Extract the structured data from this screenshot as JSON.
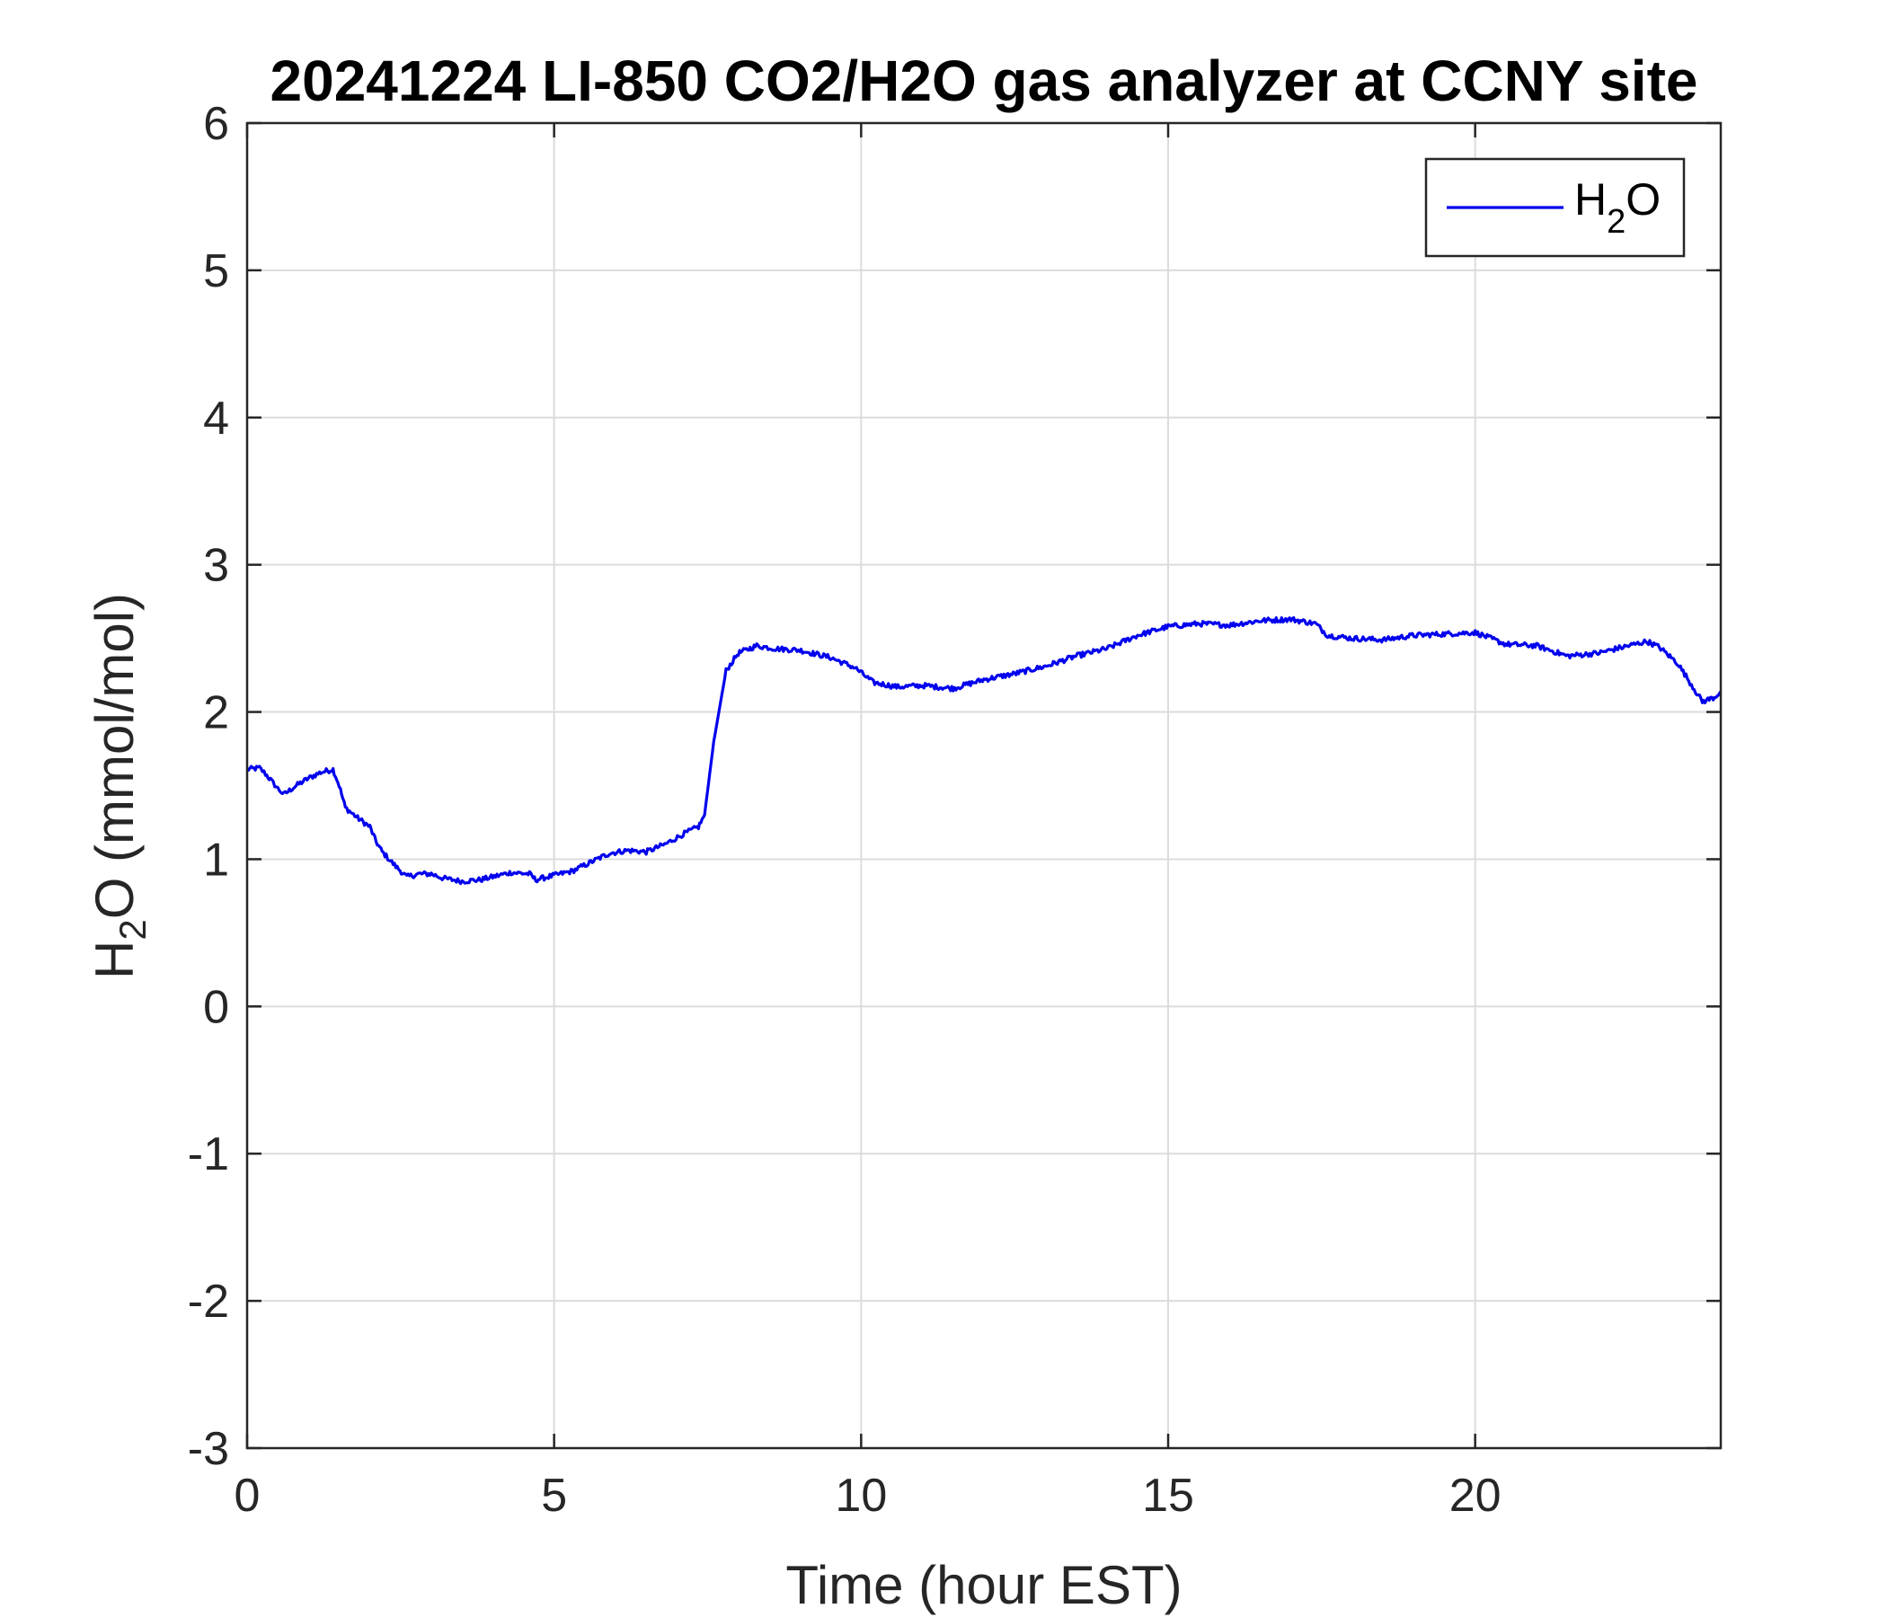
{
  "chart_data": {
    "type": "line",
    "title": "20241224 LI-850 CO2/H2O gas analyzer at CCNY site",
    "xlabel": "Time (hour EST)",
    "ylabel": {
      "base": "H",
      "sub": "2",
      "rest": "O (mmol/mol)"
    },
    "xlim": [
      0,
      24
    ],
    "ylim": [
      -3,
      6
    ],
    "xticks": [
      0,
      5,
      10,
      15,
      20
    ],
    "yticks": [
      -3,
      -2,
      -1,
      0,
      1,
      2,
      3,
      4,
      5,
      6
    ],
    "grid": true,
    "legend_position": "top-right",
    "series": [
      {
        "name": {
          "base": "H",
          "sub": "2",
          "rest": "O"
        },
        "color": "#0000ee",
        "x": [
          0,
          0.2,
          0.3,
          0.4,
          0.5,
          0.6,
          0.8,
          1.0,
          1.2,
          1.4,
          1.5,
          1.6,
          1.8,
          2.0,
          2.1,
          2.2,
          2.4,
          2.6,
          2.8,
          3.0,
          3.2,
          3.5,
          3.8,
          4.0,
          4.3,
          4.6,
          4.7,
          5.0,
          5.3,
          5.6,
          5.9,
          6.2,
          6.5,
          6.8,
          7.1,
          7.35,
          7.45,
          7.6,
          7.8,
          8.0,
          8.3,
          8.6,
          9.0,
          9.5,
          9.9,
          10.2,
          10.6,
          11.0,
          11.5,
          12.0,
          12.5,
          13.0,
          13.5,
          14.0,
          14.5,
          15.0,
          15.5,
          16.0,
          16.5,
          17.0,
          17.4,
          17.6,
          18.0,
          18.5,
          19.0,
          19.5,
          20.0,
          20.5,
          21.0,
          21.5,
          22.0,
          22.5,
          22.8,
          23.0,
          23.3,
          23.5,
          23.7,
          23.9,
          24.0
        ],
        "y": [
          1.61,
          1.62,
          1.58,
          1.53,
          1.48,
          1.44,
          1.5,
          1.55,
          1.59,
          1.61,
          1.5,
          1.35,
          1.28,
          1.22,
          1.12,
          1.05,
          0.96,
          0.88,
          0.9,
          0.9,
          0.87,
          0.85,
          0.86,
          0.88,
          0.91,
          0.9,
          0.86,
          0.89,
          0.92,
          0.98,
          1.04,
          1.06,
          1.05,
          1.1,
          1.17,
          1.22,
          1.3,
          1.8,
          2.28,
          2.4,
          2.45,
          2.43,
          2.42,
          2.37,
          2.3,
          2.2,
          2.17,
          2.18,
          2.16,
          2.22,
          2.26,
          2.31,
          2.38,
          2.43,
          2.52,
          2.58,
          2.6,
          2.59,
          2.62,
          2.63,
          2.6,
          2.52,
          2.5,
          2.49,
          2.52,
          2.53,
          2.54,
          2.46,
          2.45,
          2.38,
          2.4,
          2.45,
          2.48,
          2.44,
          2.33,
          2.2,
          2.07,
          2.1,
          2.14
        ]
      }
    ]
  }
}
